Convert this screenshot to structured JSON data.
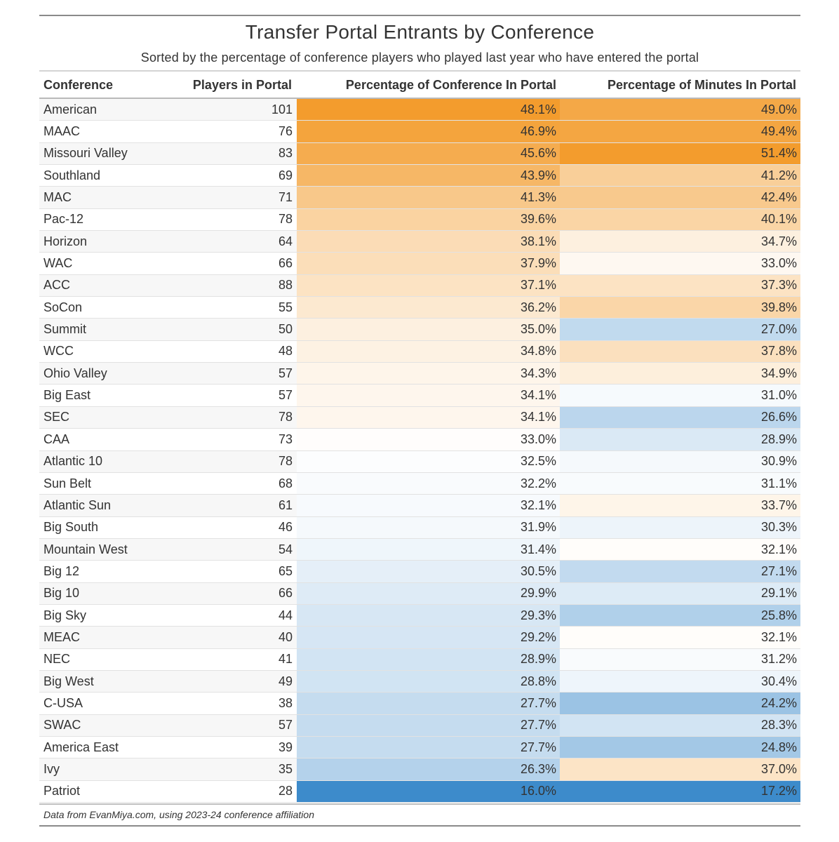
{
  "title": "Transfer Portal Entrants by Conference",
  "subtitle": "Sorted by the percentage of conference players who played last year who have entered the portal",
  "source": "Data from EvanMiya.com, using 2023-24 conference affiliation",
  "columns": {
    "conference": "Conference",
    "players": "Players in Portal",
    "pct_conf": "Percentage of Conference In Portal",
    "pct_min": "Percentage of Minutes In Portal"
  },
  "colors": {
    "high": "#f39c2d",
    "mid": "#ffffff",
    "low": "#3d8bcb"
  },
  "chart_data": {
    "type": "table",
    "title": "Transfer Portal Entrants by Conference",
    "subtitle": "Sorted by the percentage of conference players who played last year who have entered the portal",
    "columns": [
      "Conference",
      "Players in Portal",
      "Percentage of Conference In Portal",
      "Percentage of Minutes In Portal"
    ],
    "rows": [
      {
        "conference": "American",
        "players": "101",
        "pct_conf": "48.1%",
        "pct_min": "49.0%"
      },
      {
        "conference": "MAAC",
        "players": "76",
        "pct_conf": "46.9%",
        "pct_min": "49.4%"
      },
      {
        "conference": "Missouri Valley",
        "players": "83",
        "pct_conf": "45.6%",
        "pct_min": "51.4%"
      },
      {
        "conference": "Southland",
        "players": "69",
        "pct_conf": "43.9%",
        "pct_min": "41.2%"
      },
      {
        "conference": "MAC",
        "players": "71",
        "pct_conf": "41.3%",
        "pct_min": "42.4%"
      },
      {
        "conference": "Pac-12",
        "players": "78",
        "pct_conf": "39.6%",
        "pct_min": "40.1%"
      },
      {
        "conference": "Horizon",
        "players": "64",
        "pct_conf": "38.1%",
        "pct_min": "34.7%"
      },
      {
        "conference": "WAC",
        "players": "66",
        "pct_conf": "37.9%",
        "pct_min": "33.0%"
      },
      {
        "conference": "ACC",
        "players": "88",
        "pct_conf": "37.1%",
        "pct_min": "37.3%"
      },
      {
        "conference": "SoCon",
        "players": "55",
        "pct_conf": "36.2%",
        "pct_min": "39.8%"
      },
      {
        "conference": "Summit",
        "players": "50",
        "pct_conf": "35.0%",
        "pct_min": "27.0%"
      },
      {
        "conference": "WCC",
        "players": "48",
        "pct_conf": "34.8%",
        "pct_min": "37.8%"
      },
      {
        "conference": "Ohio Valley",
        "players": "57",
        "pct_conf": "34.3%",
        "pct_min": "34.9%"
      },
      {
        "conference": "Big East",
        "players": "57",
        "pct_conf": "34.1%",
        "pct_min": "31.0%"
      },
      {
        "conference": "SEC",
        "players": "78",
        "pct_conf": "34.1%",
        "pct_min": "26.6%"
      },
      {
        "conference": "CAA",
        "players": "73",
        "pct_conf": "33.0%",
        "pct_min": "28.9%"
      },
      {
        "conference": "Atlantic 10",
        "players": "78",
        "pct_conf": "32.5%",
        "pct_min": "30.9%"
      },
      {
        "conference": "Sun Belt",
        "players": "68",
        "pct_conf": "32.2%",
        "pct_min": "31.1%"
      },
      {
        "conference": "Atlantic Sun",
        "players": "61",
        "pct_conf": "32.1%",
        "pct_min": "33.7%"
      },
      {
        "conference": "Big South",
        "players": "46",
        "pct_conf": "31.9%",
        "pct_min": "30.3%"
      },
      {
        "conference": "Mountain West",
        "players": "54",
        "pct_conf": "31.4%",
        "pct_min": "32.1%"
      },
      {
        "conference": "Big 12",
        "players": "65",
        "pct_conf": "30.5%",
        "pct_min": "27.1%"
      },
      {
        "conference": "Big 10",
        "players": "66",
        "pct_conf": "29.9%",
        "pct_min": "29.1%"
      },
      {
        "conference": "Big Sky",
        "players": "44",
        "pct_conf": "29.3%",
        "pct_min": "25.8%"
      },
      {
        "conference": "MEAC",
        "players": "40",
        "pct_conf": "29.2%",
        "pct_min": "32.1%"
      },
      {
        "conference": "NEC",
        "players": "41",
        "pct_conf": "28.9%",
        "pct_min": "31.2%"
      },
      {
        "conference": "Big West",
        "players": "49",
        "pct_conf": "28.8%",
        "pct_min": "30.4%"
      },
      {
        "conference": "C-USA",
        "players": "38",
        "pct_conf": "27.7%",
        "pct_min": "24.2%"
      },
      {
        "conference": "SWAC",
        "players": "57",
        "pct_conf": "27.7%",
        "pct_min": "28.3%"
      },
      {
        "conference": "America East",
        "players": "39",
        "pct_conf": "27.7%",
        "pct_min": "24.8%"
      },
      {
        "conference": "Ivy",
        "players": "35",
        "pct_conf": "26.3%",
        "pct_min": "37.0%"
      },
      {
        "conference": "Patriot",
        "players": "28",
        "pct_conf": "16.0%",
        "pct_min": "17.2%"
      }
    ]
  }
}
